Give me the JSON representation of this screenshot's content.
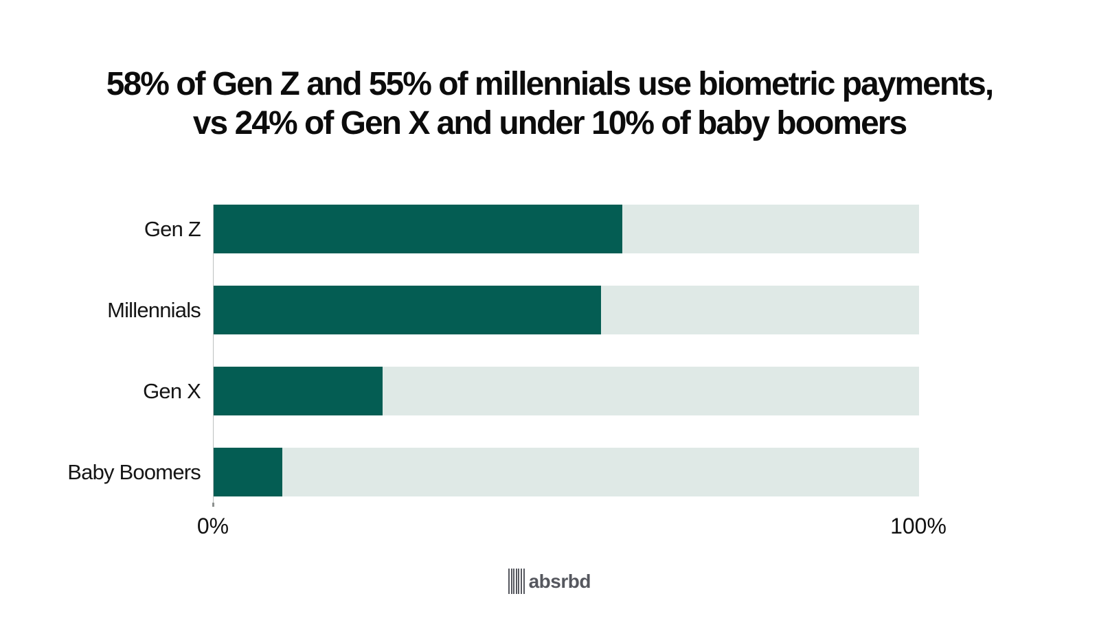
{
  "chart_data": {
    "type": "bar",
    "orientation": "horizontal",
    "title_line1": "58% of Gen Z and 55% of millennials use biometric payments,",
    "title_line2": "vs 24% of Gen X and under 10% of baby boomers",
    "categories": [
      "Gen Z",
      "Millennials",
      "Gen X",
      "Baby Boomers"
    ],
    "values": [
      58,
      55,
      24,
      9.8
    ],
    "xlim": [
      0,
      100
    ],
    "xlabel": "",
    "ylabel": "",
    "tick_label_min": "0%",
    "tick_label_max": "100%",
    "grid": false,
    "legend": false,
    "bar_color": "#045d53",
    "track_color": "#dfe9e6"
  },
  "footer": {
    "brand": "absrbd",
    "logo_icon": "barcode-lines-icon",
    "brand_color": "#55575e"
  }
}
